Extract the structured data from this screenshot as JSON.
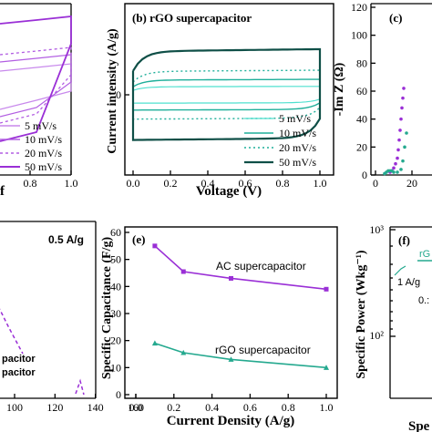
{
  "colors": {
    "purple": "#9a2fd6",
    "purple_light": "#c889ec",
    "purple_mid": "#b25ee2",
    "teal_light": "#4fe0cf",
    "teal_mid": "#1faf9a",
    "teal_dark": "#0f4f47",
    "teal_line": "#25a98f",
    "axis": "#000000"
  },
  "chart_data": [
    {
      "panel": "a",
      "type": "line",
      "title": "",
      "x_ticks": [
        "0.8",
        "1.0"
      ],
      "xlim": [
        0.6,
        1.0
      ],
      "xlabel": "",
      "partial_x_label": "",
      "legend": [
        "5 mV/s",
        "10 mV/s",
        "20 mV/s",
        "50 mV/s"
      ],
      "legend_position": "bottom-right"
    },
    {
      "panel": "b",
      "type": "line",
      "title": "(b) rGO supercapacitor",
      "xlabel": "Voltage (V)",
      "ylabel": "Current intensity (A/g)",
      "xlim": [
        0.0,
        1.0
      ],
      "ylim": [
        -1.2,
        1.2
      ],
      "x_ticks": [
        "0.0",
        "0.2",
        "0.4",
        "0.6",
        "0.8",
        "1.0"
      ],
      "y_ticks": [
        "0"
      ],
      "legend": [
        "5 mV/s",
        "10 mV/s",
        "20 mV/s",
        "50 mV/s"
      ],
      "legend_position": "bottom-right",
      "series": [
        {
          "name": "5 mV/s",
          "upper": 0.12,
          "lower": -0.12
        },
        {
          "name": "10 mV/s",
          "upper": 0.22,
          "lower": -0.22
        },
        {
          "name": "20 mV/s",
          "upper": 0.35,
          "lower": -0.35
        },
        {
          "name": "50 mV/s",
          "upper": 0.65,
          "lower": -0.65
        }
      ]
    },
    {
      "panel": "c",
      "type": "scatter",
      "title": "(c)",
      "ylabel": "-Im Z (Ω)",
      "ylim": [
        0,
        120
      ],
      "y_ticks": [
        "0",
        "20",
        "40",
        "60",
        "80",
        "100",
        "120"
      ],
      "x_ticks": [
        "0",
        "20"
      ],
      "xlim": [
        0,
        60
      ]
    },
    {
      "panel": "d",
      "type": "line",
      "title": "",
      "annotation": "0.5 A/g",
      "legend_partial": [
        "pacitor",
        "pacitor"
      ],
      "x_ticks": [
        "100",
        "120",
        "140",
        "160"
      ],
      "xlim": [
        90,
        165
      ]
    },
    {
      "panel": "e",
      "type": "line",
      "title": "(e)",
      "xlabel": "Current Density (A/g)",
      "ylabel": "Specific Capacitance (F/g)",
      "xlim": [
        0.0,
        1.0
      ],
      "ylim": [
        0,
        60
      ],
      "x_ticks": [
        "0.0",
        "0.2",
        "0.4",
        "0.6",
        "0.8",
        "1.0"
      ],
      "y_ticks": [
        "0",
        "10",
        "20",
        "30",
        "40",
        "50",
        "60"
      ],
      "series": [
        {
          "name": "AC supercapacitor",
          "x": [
            0.1,
            0.25,
            0.5,
            1.0
          ],
          "y": [
            55,
            45.5,
            43,
            39
          ]
        },
        {
          "name": "rGO supercapacitor",
          "x": [
            0.1,
            0.25,
            0.5,
            1.0
          ],
          "y": [
            19,
            15.5,
            13,
            10
          ]
        }
      ]
    },
    {
      "panel": "f",
      "type": "line",
      "title": "(f)",
      "ylabel": "Specific Power (Wkg⁻¹)",
      "y_ticks_major": [
        "10³",
        "10²"
      ],
      "annotations": [
        "rG",
        "1 A/g",
        "0.:"
      ],
      "partial_x_label": "Spe"
    }
  ]
}
